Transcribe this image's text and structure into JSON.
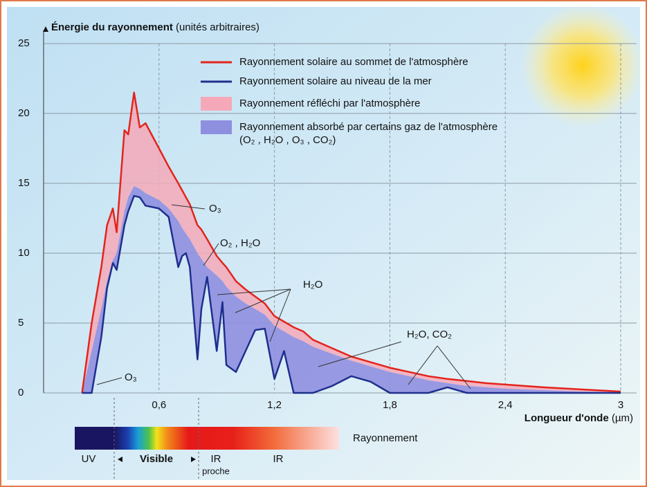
{
  "chart_data": {
    "type": "spectrum",
    "y_label": "Énergie du rayonnement",
    "y_label_unit": "(unités arbitraires)",
    "x_label": "Longueur d'onde",
    "x_label_unit": "(µm)",
    "xlim": [
      0,
      3
    ],
    "ylim": [
      0,
      25
    ],
    "xticks": [
      {
        "value": 0.6,
        "label": "0,6"
      },
      {
        "value": 1.2,
        "label": "1,2"
      },
      {
        "value": 1.8,
        "label": "1,8"
      },
      {
        "value": 2.4,
        "label": "2,4"
      },
      3
    ],
    "yticks": [
      0,
      5,
      10,
      15,
      20,
      25
    ],
    "grid": true,
    "x": [
      0.2,
      0.25,
      0.3,
      0.33,
      0.36,
      0.38,
      0.42,
      0.44,
      0.47,
      0.5,
      0.53,
      0.6,
      0.65,
      0.7,
      0.72,
      0.74,
      0.76,
      0.8,
      0.82,
      0.85,
      0.9,
      0.93,
      0.95,
      1.0,
      1.05,
      1.1,
      1.15,
      1.2,
      1.25,
      1.3,
      1.35,
      1.4,
      1.5,
      1.6,
      1.7,
      1.8,
      1.9,
      2.0,
      2.1,
      2.2,
      2.3,
      2.4,
      2.6,
      2.8,
      3.0
    ],
    "series": [
      {
        "name": "Rayonnement solaire au sommet de l'atmosphère",
        "kind": "line",
        "color": "#e3241b",
        "values": [
          0,
          5,
          9,
          12,
          13.2,
          11.5,
          18.8,
          18.5,
          21.5,
          19,
          19.3,
          17.5,
          16.2,
          15,
          14.5,
          14,
          13.5,
          12,
          11.7,
          11,
          9.8,
          9.3,
          9,
          8,
          7.4,
          6.9,
          6.4,
          5.5,
          5.1,
          4.7,
          4.4,
          3.8,
          3.2,
          2.6,
          2.2,
          1.8,
          1.5,
          1.2,
          1,
          0.85,
          0.7,
          0.6,
          0.4,
          0.25,
          0.1
        ]
      },
      {
        "name": "Rayonnement solaire au niveau de la mer",
        "kind": "line",
        "color": "#1e2f8c",
        "values": [
          0,
          0,
          4,
          7.5,
          9.3,
          8.8,
          12,
          13,
          14.1,
          14,
          13.4,
          13.2,
          12.6,
          9,
          9.8,
          10,
          9,
          2.4,
          6,
          8.3,
          3,
          6.5,
          2,
          1.5,
          3,
          4.5,
          4.6,
          1,
          3,
          0,
          0,
          0,
          0.5,
          1.2,
          0.8,
          0,
          0,
          0,
          0.4,
          0,
          0,
          0,
          0,
          0,
          0
        ]
      },
      {
        "name": "Rayonnement réfléchi par l'atmosphère",
        "kind": "band",
        "color": "#f5a9b8",
        "values": [
          0,
          3,
          6,
          8,
          9.5,
          10,
          13,
          14,
          14.8,
          14.6,
          14.3,
          13.8,
          13.2,
          12.3,
          11.8,
          11.4,
          11,
          10,
          9.6,
          9,
          8.4,
          8,
          7.6,
          6.9,
          6.4,
          6,
          5.6,
          4.8,
          4.4,
          4,
          3.7,
          3.3,
          2.8,
          2.3,
          1.9,
          1.5,
          1.2,
          0.9,
          0.7,
          0.5,
          0.4,
          0.3,
          0.2,
          0.1,
          0.05
        ]
      },
      {
        "name": "Rayonnement absorbé par certains gaz de l'atmosphère (O₂ , H₂O , O₃ , CO₂)",
        "kind": "absorbed",
        "color": "#8f8fe0"
      }
    ],
    "annotations": [
      "O₃",
      "O₂ , H₂O",
      "H₂O",
      "H₂O, CO₂",
      "O₃"
    ],
    "spectrum": {
      "label": "Rayonnement",
      "bands": [
        "UV",
        "Visible",
        "IR",
        "IR"
      ],
      "note": "proche"
    }
  }
}
